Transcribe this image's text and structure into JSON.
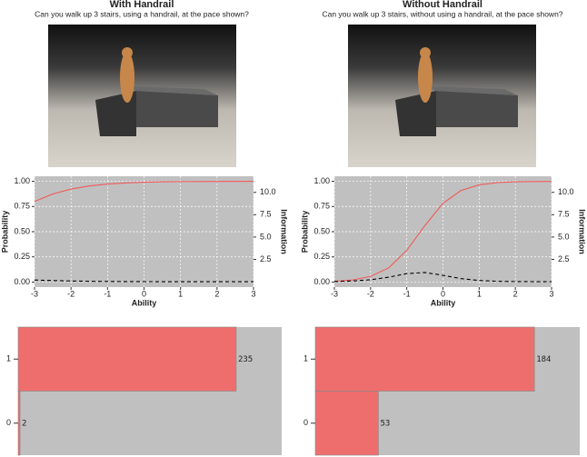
{
  "chart_data": [
    {
      "type": "line",
      "title": "With Handrail",
      "subtitle": "Can you walk up 3 stairs, using a handrail, at the pace shown?",
      "x_label": "Ability",
      "y_label": "Probability",
      "y2_label": "Information",
      "x": [
        -3,
        -2.5,
        -2,
        -1.5,
        -1,
        -0.5,
        0,
        0.5,
        1,
        1.5,
        2,
        2.5,
        3
      ],
      "series": [
        {
          "name": "Probability",
          "color": "#f05a5a",
          "linestyle": "solid",
          "axis": "y",
          "values": [
            0.8,
            0.874,
            0.923,
            0.954,
            0.973,
            0.984,
            0.991,
            0.995,
            0.997,
            0.998,
            0.999,
            0.999,
            1.0
          ]
        },
        {
          "name": "Information",
          "color": "#000000",
          "linestyle": "dashed",
          "axis": "y2",
          "values": [
            0.194,
            0.133,
            0.086,
            0.053,
            0.032,
            0.019,
            0.011,
            0.006,
            0.004,
            0.002,
            0.001,
            0.001,
            0.0
          ]
        }
      ],
      "xlim": [
        -3,
        3
      ],
      "xticks": [
        -3,
        -2,
        -1,
        0,
        1,
        2,
        3
      ],
      "ylim": [
        -0.05,
        1.05
      ],
      "yticks": [
        {
          "value": 0,
          "label": "0.00"
        },
        {
          "value": 0.25,
          "label": "0.25"
        },
        {
          "value": 0.5,
          "label": "0.50"
        },
        {
          "value": 0.75,
          "label": "0.75"
        },
        {
          "value": 1,
          "label": "1.00"
        }
      ],
      "y2lim": [
        -0.6,
        11.8
      ],
      "y2ticks": [
        2.5,
        {
          "value": 5,
          "label": "5.0"
        },
        7.5,
        {
          "value": 10,
          "label": "10.0"
        }
      ],
      "grid": true,
      "background": "#c0c0c0"
    },
    {
      "type": "line",
      "title": "Without Handrail",
      "subtitle": "Can you walk up 3 stairs, without using a handrail, at the pace shown?",
      "x_label": "Ability",
      "y_label": "Probability",
      "y2_label": "Information",
      "x": [
        -3,
        -2.5,
        -2,
        -1.5,
        -1,
        -0.5,
        0,
        0.5,
        1,
        1.5,
        2,
        2.5,
        3
      ],
      "series": [
        {
          "name": "Probability",
          "color": "#f05a5a",
          "linestyle": "solid",
          "axis": "y",
          "values": [
            0.0075,
            0.021,
            0.056,
            0.141,
            0.315,
            0.561,
            0.781,
            0.909,
            0.965,
            0.987,
            0.995,
            0.998,
            0.999
          ]
        },
        {
          "name": "Information",
          "color": "#000000",
          "linestyle": "dashed",
          "axis": "y2",
          "values": [
            0.031,
            0.085,
            0.222,
            0.509,
            0.907,
            1.035,
            0.719,
            0.348,
            0.142,
            0.054,
            0.021,
            0.008,
            0.004
          ]
        }
      ],
      "xlim": [
        -3,
        3
      ],
      "xticks": [
        -3,
        -2,
        -1,
        0,
        1,
        2,
        3
      ],
      "ylim": [
        -0.05,
        1.05
      ],
      "yticks": [
        {
          "value": 0,
          "label": "0.00"
        },
        {
          "value": 0.25,
          "label": "0.25"
        },
        {
          "value": 0.5,
          "label": "0.50"
        },
        {
          "value": 0.75,
          "label": "0.75"
        },
        {
          "value": 1,
          "label": "1.00"
        }
      ],
      "y2lim": [
        -0.6,
        11.8
      ],
      "y2ticks": [
        2.5,
        {
          "value": 5,
          "label": "5.0"
        },
        7.5,
        {
          "value": 10,
          "label": "10.0"
        }
      ],
      "grid": true,
      "background": "#c0c0c0"
    },
    {
      "type": "hbar",
      "categories": [
        "0",
        "1"
      ],
      "values": [
        2,
        235
      ],
      "color": "#ee6e6e",
      "xlim": [
        0,
        284
      ],
      "background": "#c0c0c0"
    },
    {
      "type": "hbar",
      "categories": [
        "0",
        "1"
      ],
      "values": [
        53,
        184
      ],
      "color": "#ee6e6e",
      "xlim": [
        0,
        222
      ],
      "background": "#c0c0c0"
    }
  ]
}
